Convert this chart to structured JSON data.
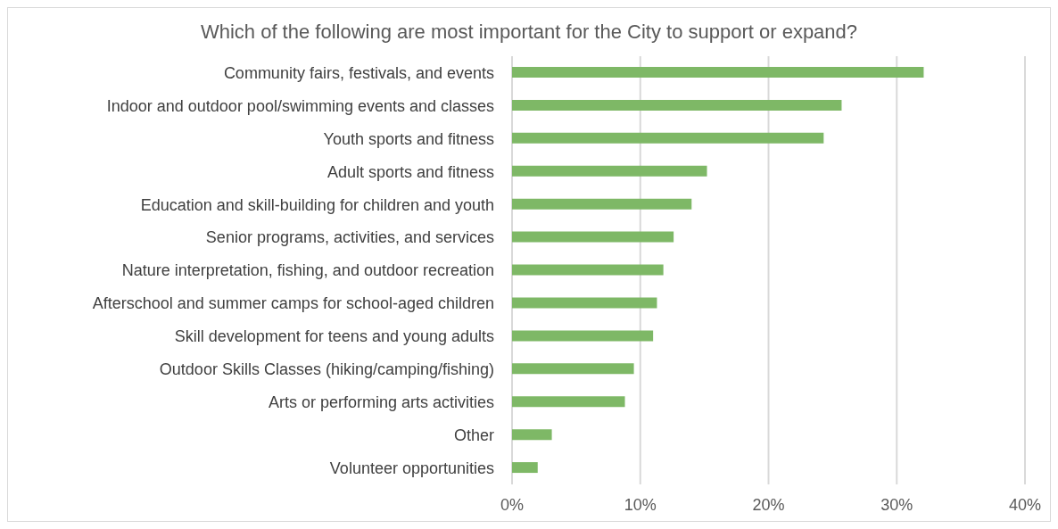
{
  "chart_data": {
    "type": "bar",
    "orientation": "horizontal",
    "title": "Which of the following are most important for the City to support or expand?",
    "categories": [
      "Community fairs, festivals, and events",
      "Indoor and outdoor pool/swimming events and classes",
      "Youth sports and fitness",
      "Adult sports and fitness",
      "Education and skill-building for children and youth",
      "Senior programs, activities, and services",
      "Nature interpretation, fishing, and outdoor recreation",
      "Afterschool and summer camps for school-aged children",
      "Skill development for teens and young adults",
      "Outdoor Skills Classes (hiking/camping/fishing)",
      "Arts or performing arts activities",
      "Other",
      "Volunteer opportunities"
    ],
    "values": [
      32.1,
      25.7,
      24.3,
      15.2,
      14.0,
      12.6,
      11.8,
      11.3,
      11.0,
      9.5,
      8.8,
      3.1,
      2.0
    ],
    "color": "#7eb866",
    "xlim": [
      0,
      40
    ],
    "xticks": [
      {
        "value": 0,
        "label": "0%"
      },
      {
        "value": 10,
        "label": "10%"
      },
      {
        "value": 20,
        "label": "20%"
      },
      {
        "value": 30,
        "label": "30%"
      },
      {
        "value": 40,
        "label": "40%"
      }
    ],
    "grid": "x",
    "legend": false
  }
}
